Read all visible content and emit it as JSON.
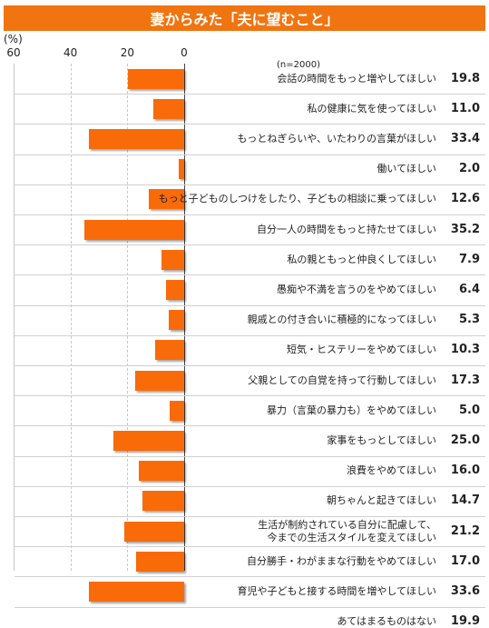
{
  "chart_data": {
    "type": "bar",
    "orientation": "horizontal",
    "title": "妻からみた「夫に望むこと」",
    "unit": "(%)",
    "sample_note": "(n=2000)",
    "xlim": [
      60,
      0
    ],
    "xticks": [
      "60",
      "40",
      "20",
      "0"
    ],
    "categories": [
      "会話の時間をもっと増やしてほしい",
      "私の健康に気を使ってほしい",
      "もっとねぎらいや、いたわりの言葉がほしい",
      "働いてほしい",
      "もっと子どものしつけをしたり、子どもの相談に乗ってほしい",
      "自分一人の時間をもっと持たせてほしい",
      "私の親ともっと仲良くしてほしい",
      "愚痴や不満を言うのをやめてほしい",
      "親戚との付き合いに積極的になってほしい",
      "短気・ヒステリーをやめてほしい",
      "父親としての自覚を持って行動してほしい",
      "暴力（言葉の暴力も）をやめてほしい",
      "家事をもっとしてほしい",
      "浪費をやめてほしい",
      "朝ちゃんと起きてほしい",
      "生活が制約されている自分に配慮して、\n今までの生活スタイルを変えてほしい",
      "自分勝手・わがままな行動をやめてほしい",
      "育児や子どもと接する時間を増やしてほしい",
      "あてはまるものはない"
    ],
    "values": [
      19.8,
      11.0,
      33.4,
      2.0,
      12.6,
      35.2,
      7.9,
      6.4,
      5.3,
      10.3,
      17.3,
      5.0,
      25.0,
      16.0,
      14.7,
      21.2,
      17.0,
      33.6,
      19.9
    ],
    "value_labels": [
      "19.8",
      "11.0",
      "33.4",
      "2.0",
      "12.6",
      "35.2",
      "7.9",
      "6.4",
      "5.3",
      "10.3",
      "17.3",
      "5.0",
      "25.0",
      "16.0",
      "14.7",
      "21.2",
      "17.0",
      "33.6",
      "19.9"
    ],
    "bar_drawn": [
      true,
      true,
      true,
      true,
      true,
      true,
      true,
      true,
      true,
      true,
      true,
      true,
      true,
      true,
      true,
      true,
      true,
      true,
      false
    ],
    "bar_color": "#f96b09",
    "title_color": "#f07410",
    "grid": true
  }
}
